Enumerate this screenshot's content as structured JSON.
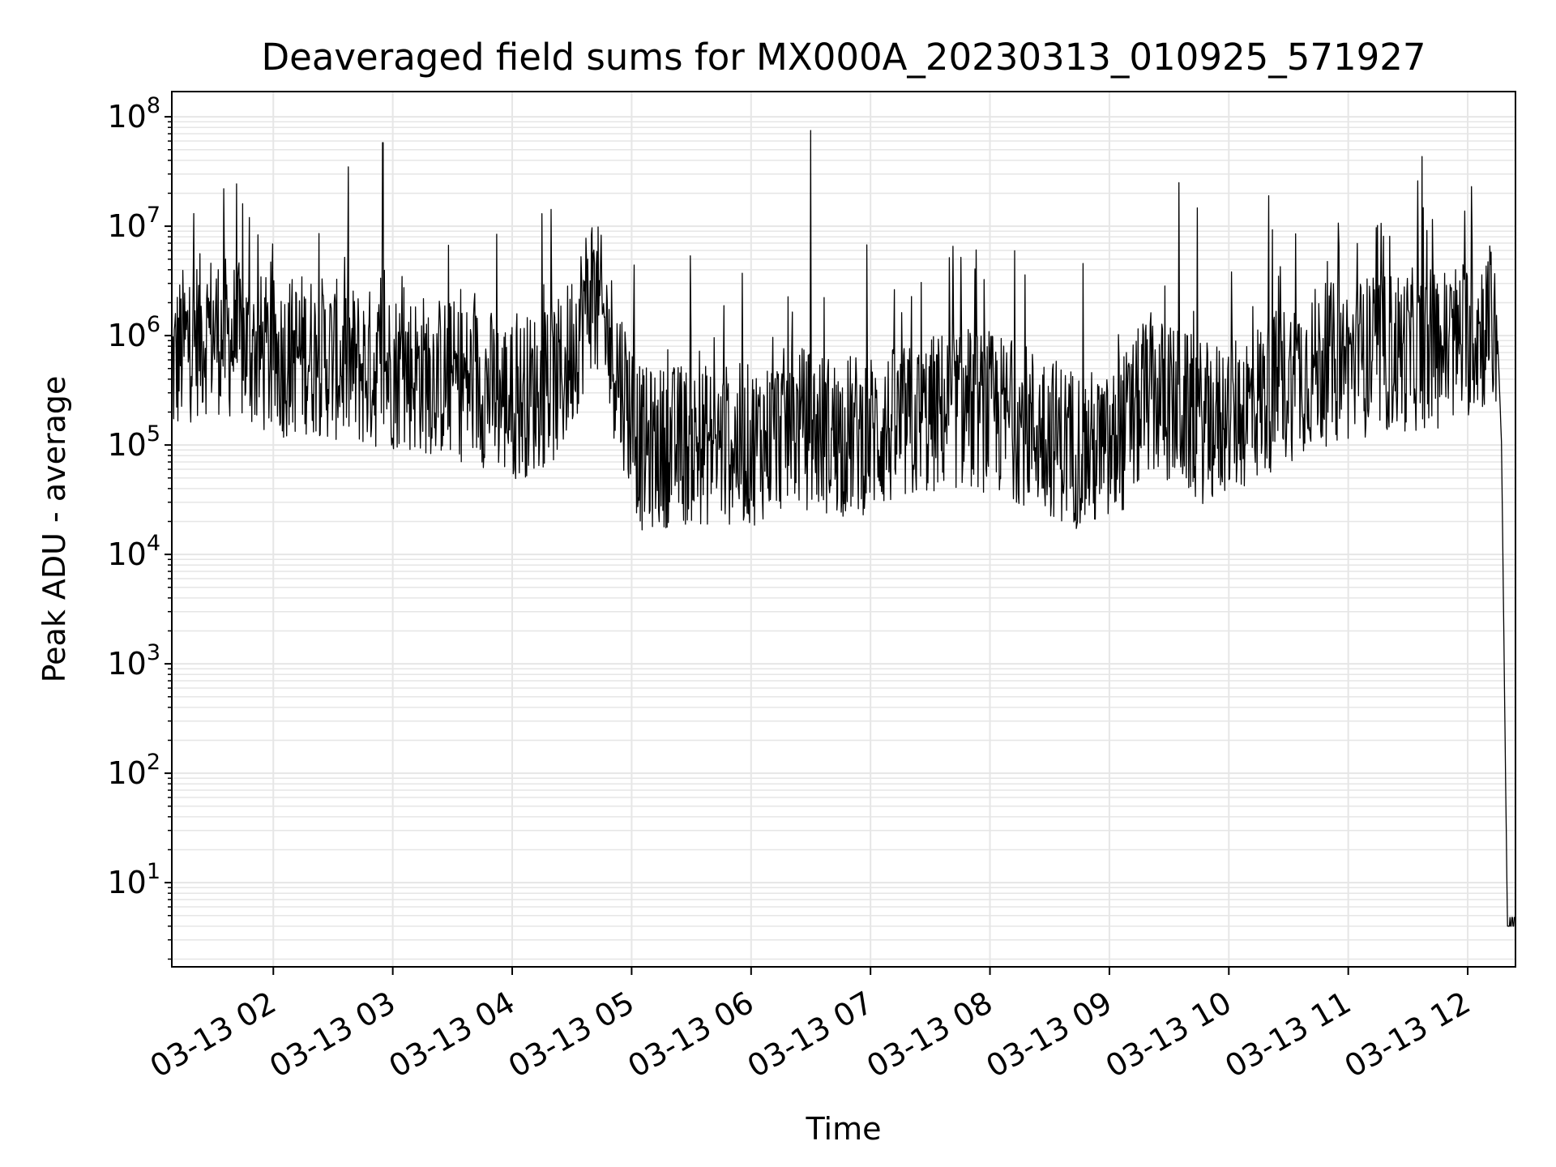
{
  "chart_data": {
    "type": "line",
    "title": "Deaveraged field sums for MX000A_20230313_010925_571927",
    "xlabel": "Time",
    "ylabel": "Peak ADU - average",
    "y_scale": "log",
    "ylim": [
      1.7,
      170000000.0
    ],
    "xlim": [
      "2023-03-13 01:09",
      "2023-03-13 12:24"
    ],
    "grid": "on (major and minor, light gray)",
    "line_color": "#000000",
    "x_ticks": [
      "03-13 02",
      "03-13 03",
      "03-13 04",
      "03-13 05",
      "03-13 06",
      "03-13 07",
      "03-13 08",
      "03-13 09",
      "03-13 10",
      "03-13 11",
      "03-13 12"
    ],
    "y_ticks": [
      {
        "base": "10",
        "exp": "1",
        "value": 10
      },
      {
        "base": "10",
        "exp": "2",
        "value": 100
      },
      {
        "base": "10",
        "exp": "3",
        "value": 1000
      },
      {
        "base": "10",
        "exp": "4",
        "value": 10000
      },
      {
        "base": "10",
        "exp": "5",
        "value": 100000
      },
      {
        "base": "10",
        "exp": "6",
        "value": 1000000
      },
      {
        "base": "10",
        "exp": "7",
        "value": 10000000
      },
      {
        "base": "10",
        "exp": "8",
        "value": 100000000
      }
    ],
    "series": [
      {
        "color": "#000000",
        "x": [
          "2023-03-13 01:09",
          "2023-03-13 01:15",
          "2023-03-13 01:22",
          "2023-03-13 01:30",
          "2023-03-13 01:35",
          "2023-03-13 01:40",
          "2023-03-13 01:48",
          "2023-03-13 01:52",
          "2023-03-13 02:00",
          "2023-03-13 02:15",
          "2023-03-13 02:30",
          "2023-03-13 02:45",
          "2023-03-13 02:55",
          "2023-03-13 03:00",
          "2023-03-13 03:15",
          "2023-03-13 03:30",
          "2023-03-13 03:45",
          "2023-03-13 04:00",
          "2023-03-13 04:15",
          "2023-03-13 04:25",
          "2023-03-13 04:40",
          "2023-03-13 04:55",
          "2023-03-13 05:05",
          "2023-03-13 05:20",
          "2023-03-13 05:40",
          "2023-03-13 06:00",
          "2023-03-13 06:20",
          "2023-03-13 06:30",
          "2023-03-13 06:45",
          "2023-03-13 07:00",
          "2023-03-13 07:20",
          "2023-03-13 07:40",
          "2023-03-13 08:00",
          "2023-03-13 08:20",
          "2023-03-13 08:40",
          "2023-03-13 09:00",
          "2023-03-13 09:20",
          "2023-03-13 09:35",
          "2023-03-13 09:50",
          "2023-03-13 10:05",
          "2023-03-13 10:20",
          "2023-03-13 10:40",
          "2023-03-13 11:00",
          "2023-03-13 11:20",
          "2023-03-13 11:35",
          "2023-03-13 11:50",
          "2023-03-13 12:02",
          "2023-03-13 12:10",
          "2023-03-13 12:15",
          "2023-03-13 12:17",
          "2023-03-13 12:19",
          "2023-03-13 12:20",
          "2023-03-13 12:24"
        ],
        "y": [
          500000,
          800000,
          1000000,
          1100000,
          22000000,
          900000,
          12000000,
          700000,
          600000,
          700000,
          600000,
          500000,
          58000000,
          500000,
          450000,
          400000,
          350000,
          250000,
          13000000,
          400000,
          2800000,
          380000,
          90000,
          100000,
          100000,
          100000,
          150000,
          75000000,
          120000,
          130000,
          150000,
          220000,
          200000,
          150000,
          100000,
          80000,
          300000,
          25000000,
          150000,
          200000,
          19000000,
          500000,
          600000,
          700000,
          26000000,
          800000,
          23000000,
          1200000,
          1000000,
          100000,
          100,
          4,
          4
        ]
      }
    ]
  }
}
